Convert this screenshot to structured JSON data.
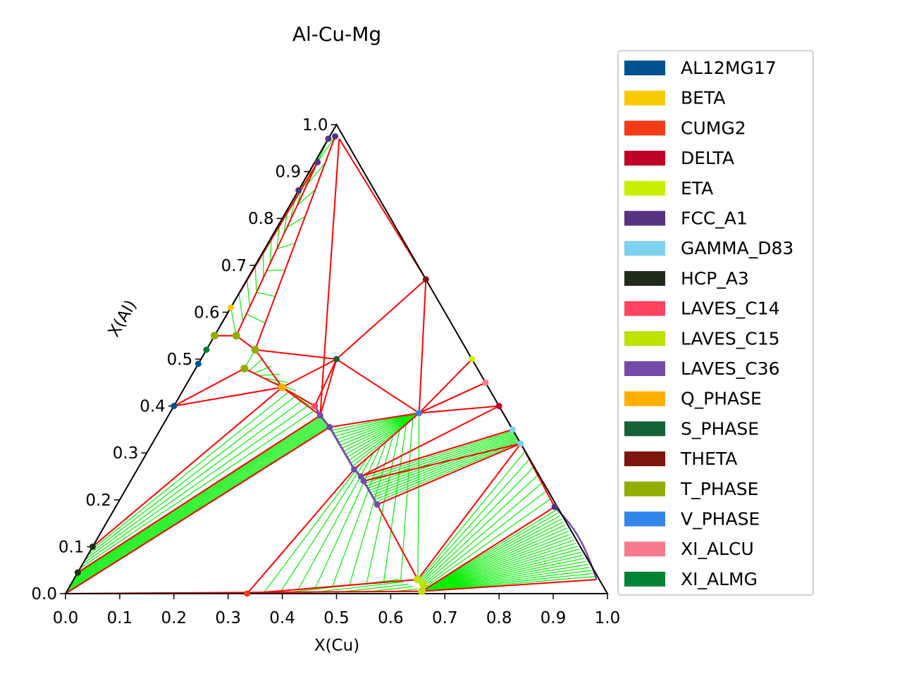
{
  "chart_data": {
    "type": "scatter",
    "subtype": "ternary phase diagram",
    "title": "Al-Cu-Mg",
    "xlabel": "X(Cu)",
    "ylabel": "X(Al)",
    "xlim": [
      0,
      1
    ],
    "ylim": [
      0,
      1
    ],
    "x_ticks": [
      "0.0",
      "0.1",
      "0.2",
      "0.3",
      "0.4",
      "0.5",
      "0.6",
      "0.7",
      "0.8",
      "0.9",
      "1.0"
    ],
    "y_ticks": [
      "0.0",
      "0.1",
      "0.2",
      "0.3",
      "0.4",
      "0.5",
      "0.6",
      "0.7",
      "0.8",
      "0.9",
      "1.0"
    ],
    "legend_position": "right",
    "tie_line_color": "#00ee00",
    "boundary_color": "#ff0000",
    "legend": [
      {
        "name": "AL12MG17",
        "color": "#005293"
      },
      {
        "name": "BETA",
        "color": "#f6c900"
      },
      {
        "name": "CUMG2",
        "color": "#f33b16"
      },
      {
        "name": "DELTA",
        "color": "#c10228"
      },
      {
        "name": "ETA",
        "color": "#cbef00"
      },
      {
        "name": "FCC_A1",
        "color": "#55337e"
      },
      {
        "name": "GAMMA_D83",
        "color": "#7ed1ee"
      },
      {
        "name": "HCP_A3",
        "color": "#212b1a"
      },
      {
        "name": "LAVES_C14",
        "color": "#ff4461"
      },
      {
        "name": "LAVES_C15",
        "color": "#bde103"
      },
      {
        "name": "LAVES_C36",
        "color": "#744ba9"
      },
      {
        "name": "Q_PHASE",
        "color": "#ffaf00"
      },
      {
        "name": "S_PHASE",
        "color": "#166237"
      },
      {
        "name": "THETA",
        "color": "#7c160d"
      },
      {
        "name": "T_PHASE",
        "color": "#92ad00"
      },
      {
        "name": "V_PHASE",
        "color": "#2f86e8"
      },
      {
        "name": "XI_ALCU",
        "color": "#f6798d"
      },
      {
        "name": "XI_ALMG",
        "color": "#008336"
      }
    ],
    "points": [
      {
        "phase": "FCC_A1",
        "x": 0.01,
        "y": 0.975
      },
      {
        "phase": "FCC_A1",
        "x": 0.0,
        "y": 0.97
      },
      {
        "phase": "FCC_A1",
        "x": 0.005,
        "y": 0.92
      },
      {
        "phase": "FCC_A1",
        "x": 0.0,
        "y": 0.86
      },
      {
        "phase": "BETA",
        "x": 0.0,
        "y": 0.61
      },
      {
        "phase": "T_PHASE",
        "x": 0.0,
        "y": 0.55
      },
      {
        "phase": "T_PHASE",
        "x": 0.04,
        "y": 0.55
      },
      {
        "phase": "T_PHASE",
        "x": 0.09,
        "y": 0.52
      },
      {
        "phase": "T_PHASE",
        "x": 0.09,
        "y": 0.48
      },
      {
        "phase": "XI_ALMG",
        "x": 0.0,
        "y": 0.52
      },
      {
        "phase": "AL12MG17",
        "x": 0.0,
        "y": 0.49
      },
      {
        "phase": "AL12MG17",
        "x": 0.0,
        "y": 0.4
      },
      {
        "phase": "Q_PHASE",
        "x": 0.18,
        "y": 0.44
      },
      {
        "phase": "S_PHASE",
        "x": 0.25,
        "y": 0.5
      },
      {
        "phase": "LAVES_C14",
        "x": 0.26,
        "y": 0.4
      },
      {
        "phase": "LAVES_C36",
        "x": 0.28,
        "y": 0.38
      },
      {
        "phase": "LAVES_C36",
        "x": 0.31,
        "y": 0.355
      },
      {
        "phase": "LAVES_C36",
        "x": 0.4,
        "y": 0.265
      },
      {
        "phase": "LAVES_C36",
        "x": 0.42,
        "y": 0.25
      },
      {
        "phase": "LAVES_C36",
        "x": 0.43,
        "y": 0.24
      },
      {
        "phase": "LAVES_C36",
        "x": 0.48,
        "y": 0.19
      },
      {
        "phase": "V_PHASE",
        "x": 0.46,
        "y": 0.385
      },
      {
        "phase": "THETA",
        "x": 0.33,
        "y": 0.67
      },
      {
        "phase": "ETA",
        "x": 0.5,
        "y": 0.5
      },
      {
        "phase": "XI_ALCU",
        "x": 0.55,
        "y": 0.45
      },
      {
        "phase": "DELTA",
        "x": 0.6,
        "y": 0.4
      },
      {
        "phase": "GAMMA_D83",
        "x": 0.65,
        "y": 0.35
      },
      {
        "phase": "GAMMA_D83",
        "x": 0.68,
        "y": 0.32
      },
      {
        "phase": "FCC_A1",
        "x": 0.81,
        "y": 0.185
      },
      {
        "phase": "LAVES_C15",
        "x": 0.635,
        "y": 0.03
      },
      {
        "phase": "LAVES_C15",
        "x": 0.65,
        "y": 0.02
      },
      {
        "phase": "LAVES_C15",
        "x": 0.655,
        "y": 0.005
      },
      {
        "phase": "CUMG2",
        "x": 0.335,
        "y": 0.0
      },
      {
        "phase": "HCP_A3",
        "x": 0.0,
        "y": 0.1
      },
      {
        "phase": "HCP_A3",
        "x": 0.0,
        "y": 0.045
      }
    ]
  }
}
